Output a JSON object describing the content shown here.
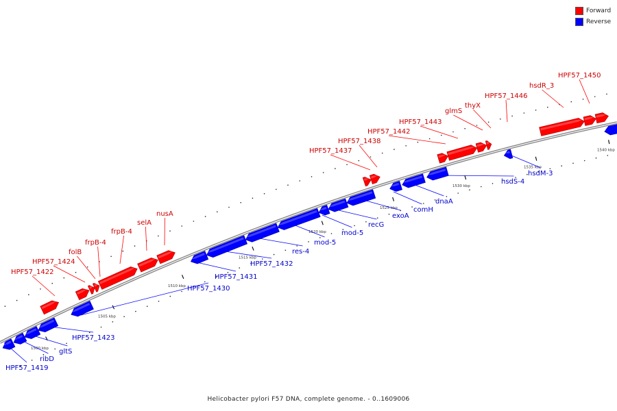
{
  "legend": {
    "forward_label": "Forward",
    "reverse_label": "Reverse",
    "forward_color": "#ff0000",
    "reverse_color": "#0000ff"
  },
  "caption": "Helicobacter pylori F57 DNA, complete genome. - 0..1609006",
  "colors": {
    "backbone": "#888888",
    "forward": "#ff0000",
    "reverse": "#0000ff",
    "label_forward": "#cc0000",
    "label_reverse": "#0000cc"
  },
  "ticks": [
    "1500 kbp",
    "1505 kbp",
    "1510 kbp",
    "1515 kbp",
    "1520 kbp",
    "1525 kbp",
    "1530 kbp",
    "1535 kbp",
    "1540 kbp"
  ],
  "forward_genes": [
    "HPF57_1422",
    "HPF57_1424",
    "folB",
    "frpB-4",
    "frpB-4",
    "selA",
    "nusA",
    "HPF57_1437",
    "HPF57_1438",
    "HPF57_1442",
    "HPF57_1443",
    "glmS",
    "thyX",
    "HPF57_1446",
    "hsdR_3",
    "HPF57_1450"
  ],
  "reverse_genes": [
    "HPF57_1419",
    "ribD",
    "gltS",
    "HPF57_1423",
    "HPF57_1430",
    "HPF57_1431",
    "HPF57_1432",
    "res-4",
    "mod-5",
    "mod-5",
    "recG",
    "exoA",
    "comH",
    "dnaA",
    "hsdS-4",
    "hsdM-3"
  ]
}
